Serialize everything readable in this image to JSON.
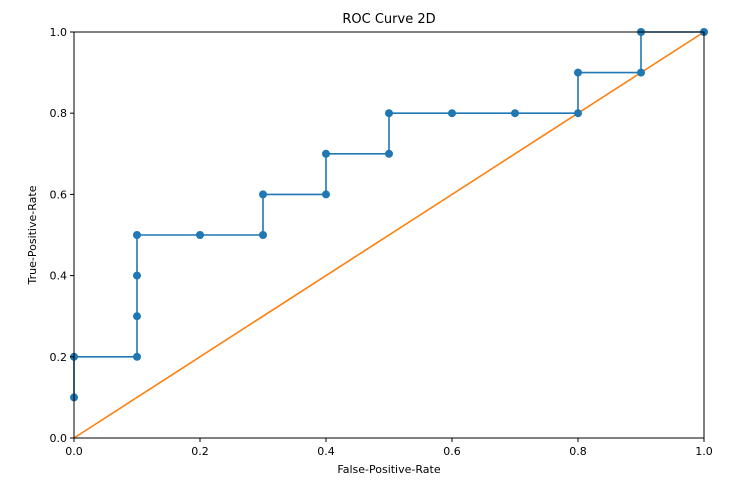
{
  "chart_data": {
    "type": "line",
    "title": "ROC Curve 2D",
    "xlabel": "False-Positive-Rate",
    "ylabel": "True-Positive-Rate",
    "xlim": [
      0.0,
      1.0
    ],
    "ylim": [
      0.0,
      1.0
    ],
    "xticks": [
      "0.0",
      "0.2",
      "0.4",
      "0.6",
      "0.8",
      "1.0"
    ],
    "yticks": [
      "0.0",
      "0.2",
      "0.4",
      "0.6",
      "0.8",
      "1.0"
    ],
    "grid": false,
    "series": [
      {
        "style": "step-with-markers",
        "color": "#1f77b4",
        "points": [
          [
            0.0,
            0.1
          ],
          [
            0.0,
            0.2
          ],
          [
            0.1,
            0.2
          ],
          [
            0.1,
            0.3
          ],
          [
            0.1,
            0.4
          ],
          [
            0.1,
            0.5
          ],
          [
            0.2,
            0.5
          ],
          [
            0.3,
            0.5
          ],
          [
            0.3,
            0.6
          ],
          [
            0.4,
            0.6
          ],
          [
            0.4,
            0.7
          ],
          [
            0.5,
            0.7
          ],
          [
            0.5,
            0.8
          ],
          [
            0.6,
            0.8
          ],
          [
            0.7,
            0.8
          ],
          [
            0.8,
            0.8
          ],
          [
            0.8,
            0.9
          ],
          [
            0.9,
            0.9
          ],
          [
            0.9,
            1.0
          ],
          [
            1.0,
            1.0
          ]
        ]
      },
      {
        "style": "line",
        "color": "#ff7f0e",
        "points": [
          [
            0.0,
            0.0
          ],
          [
            1.0,
            1.0
          ]
        ]
      }
    ]
  }
}
